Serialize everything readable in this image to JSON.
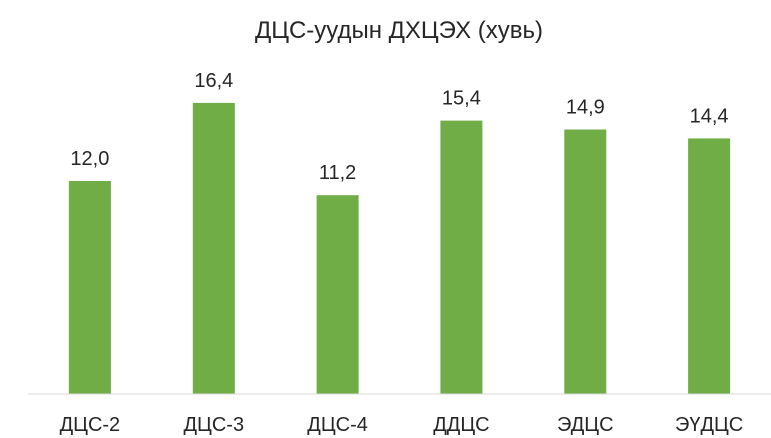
{
  "chart_data": {
    "type": "bar",
    "title": "ДЦС-уудын ДХЦЭХ (хувь)",
    "categories": [
      "ДЦС-2",
      "ДЦС-3",
      "ДЦС-4",
      "ДДЦС",
      "ЭДЦС",
      "ЭҮДЦС"
    ],
    "values": [
      12.0,
      16.4,
      11.2,
      15.4,
      14.9,
      14.4
    ],
    "value_labels": [
      "12,0",
      "16,4",
      "11,2",
      "15,4",
      "14,9",
      "14,4"
    ],
    "xlabel": "",
    "ylabel": "",
    "ylim": [
      0,
      18
    ],
    "grid": false,
    "legend": "none",
    "bar_color": "#70AD47",
    "axis_color": "#D9D9D9",
    "text_color": "#262626"
  }
}
